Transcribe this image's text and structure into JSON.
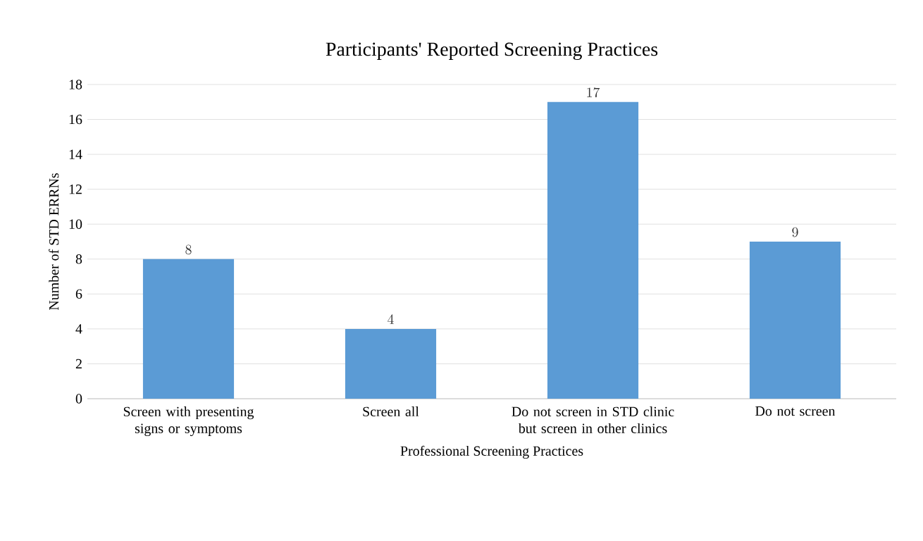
{
  "chart_data": {
    "type": "bar",
    "title": "Participants' Reported Screening Practices",
    "xlabel": "Professional Screening Practices",
    "ylabel": "Number of STD ERRNs",
    "categories": [
      "Screen with presenting signs or symptoms",
      "Screen all",
      "Do not screen in STD clinic but screen in other clinics",
      "Do not screen"
    ],
    "values": [
      8,
      4,
      17,
      9
    ],
    "color": "#5b9bd5",
    "ylim": [
      0,
      18
    ],
    "yticks": [
      0,
      2,
      4,
      6,
      8,
      10,
      12,
      14,
      16,
      18
    ],
    "grid": "y",
    "data_labels": true
  }
}
